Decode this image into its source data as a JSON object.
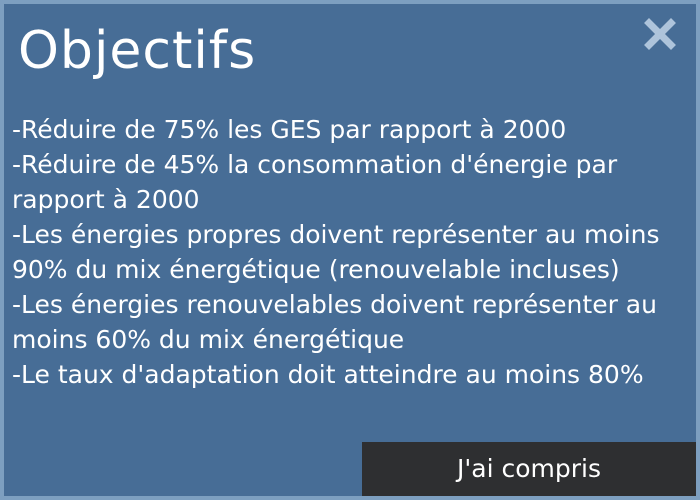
{
  "dialog": {
    "title": "Objectifs",
    "close_icon": "close-icon",
    "objectives": [
      "-Réduire de 75% les GES par rapport à 2000",
      "-Réduire de 45% la consommation d'énergie par rapport à 2000",
      "-Les énergies propres doivent représenter au moins 90% du mix énergétique (renouvelable incluses)",
      "-Les énergies renouvelables doivent représenter au moins 60% du mix énergétique",
      "-Le taux d'adaptation doit atteindre au moins 80%"
    ],
    "confirm_label": "J'ai compris"
  },
  "colors": {
    "panel_background": "#476d96",
    "panel_border": "#7d9fc0",
    "close_icon": "#aec4db",
    "button_background": "#2e2f31",
    "text": "#ffffff"
  }
}
